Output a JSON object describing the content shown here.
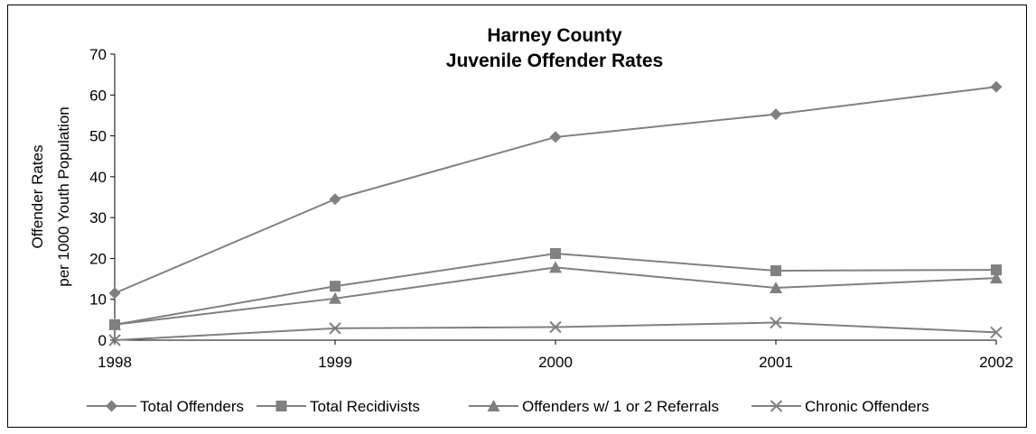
{
  "chart_data": {
    "type": "line",
    "title_line1": "Harney County",
    "title_line2": "Juvenile Offender Rates",
    "ylabel_line1": "Offender Rates",
    "ylabel_line2": "per 1000 Youth Population",
    "xlabel": "",
    "x": [
      "1998",
      "1999",
      "2000",
      "2001",
      "2002"
    ],
    "ylim": [
      0,
      70
    ],
    "yticks": [
      "0",
      "10",
      "20",
      "30",
      "40",
      "50",
      "60",
      "70"
    ],
    "grid": false,
    "legend_position": "bottom",
    "line_color": "#808080",
    "series": [
      {
        "name": "Total Offenders",
        "marker": "diamond",
        "values": [
          11.5,
          34.5,
          49.7,
          55.3,
          62.0
        ]
      },
      {
        "name": "Total Recidivists",
        "marker": "square",
        "values": [
          3.8,
          13.2,
          21.2,
          17.0,
          17.2
        ]
      },
      {
        "name": "Offenders w/ 1 or 2 Referrals",
        "marker": "triangle",
        "values": [
          3.8,
          10.2,
          17.8,
          12.8,
          15.2
        ]
      },
      {
        "name": "Chronic Offenders",
        "marker": "x",
        "values": [
          0.0,
          2.9,
          3.2,
          4.3,
          1.9
        ]
      }
    ]
  }
}
